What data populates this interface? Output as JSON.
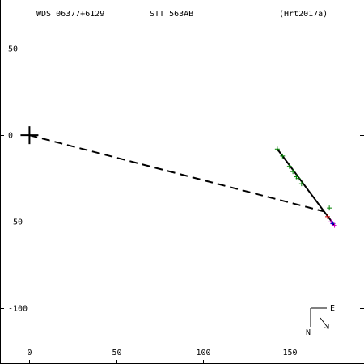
{
  "header": {
    "wds": "WDS 06377+6129",
    "pair": "STT 563AB",
    "ref": "(Hrt2017a)"
  },
  "compass": {
    "north": "N",
    "east": "E"
  },
  "chart_data": {
    "type": "scatter",
    "title": "",
    "xlabel": "",
    "ylabel": "",
    "xlim": [
      -17,
      193
    ],
    "ylim": [
      -132,
      78
    ],
    "x_ticks": [
      0,
      50,
      100,
      150
    ],
    "y_ticks": [
      -100,
      -50,
      0,
      50
    ],
    "y_tick_labels": [
      "-100",
      "-50",
      "0",
      "50"
    ],
    "x_tick_labels": [
      "0",
      "50",
      "100",
      "150"
    ],
    "primary": [
      0,
      0
    ],
    "orbit_line": [
      [
        143,
        -8
      ],
      [
        170,
        -44
      ],
      [
        176,
        -52
      ]
    ],
    "dashed_line": [
      [
        0,
        0
      ],
      [
        170,
        -44
      ]
    ],
    "observations": [
      {
        "x": 143,
        "y": -8,
        "color": "#008000"
      },
      {
        "x": 146,
        "y": -12,
        "color": "#008000"
      },
      {
        "x": 150,
        "y": -18,
        "color": "#008000"
      },
      {
        "x": 152,
        "y": -21,
        "color": "#008000"
      },
      {
        "x": 154,
        "y": -24,
        "color": "#008000"
      },
      {
        "x": 155,
        "y": -25,
        "color": "#008000"
      },
      {
        "x": 157,
        "y": -28,
        "color": "#008000"
      },
      {
        "x": 173,
        "y": -42,
        "color": "#008000"
      },
      {
        "x": 172,
        "y": -47,
        "color": "#cc0000"
      },
      {
        "x": 174,
        "y": -50,
        "color": "#cc00cc"
      },
      {
        "x": 175,
        "y": -51,
        "color": "#0000cc"
      },
      {
        "x": 176,
        "y": -52,
        "color": "#cc00cc"
      }
    ]
  }
}
